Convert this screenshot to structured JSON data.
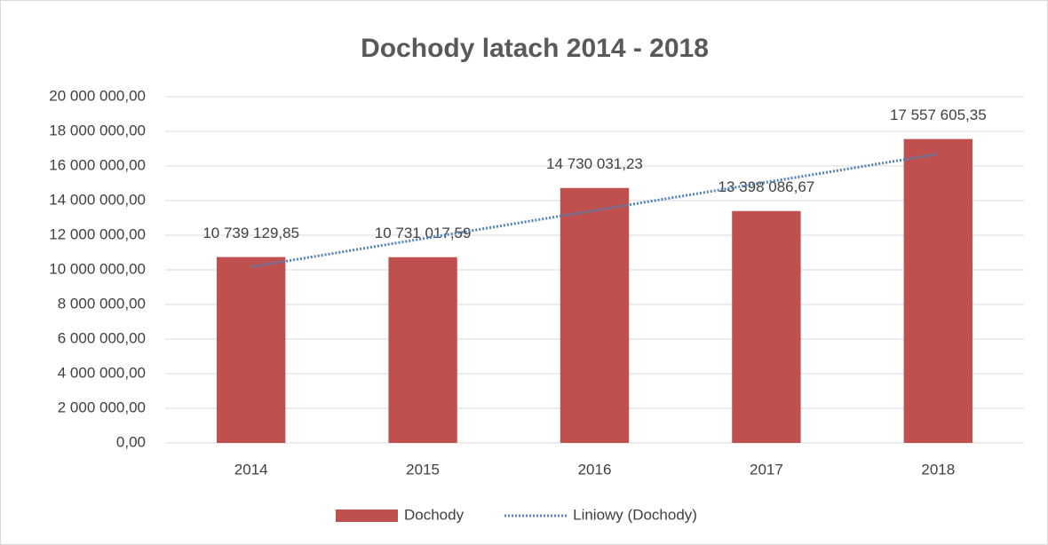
{
  "chart_data": {
    "type": "bar",
    "title": "Dochody latach 2014 - 2018",
    "categories": [
      "2014",
      "2015",
      "2016",
      "2017",
      "2018"
    ],
    "series": [
      {
        "name": "Dochody",
        "color": "#c0504d",
        "type": "bar",
        "values": [
          10739129.85,
          10731017.59,
          14730031.23,
          13398086.67,
          17557605.35
        ],
        "value_labels": [
          "10 739 129,85",
          "10 731 017,59",
          "14 730 031,23",
          "13 398 086,67",
          "17 557 605,35"
        ]
      },
      {
        "name": "Liniowy (Dochody)",
        "color": "#4f81bd",
        "type": "trendline",
        "values": [
          10170000,
          11800000,
          13430000,
          15060000,
          16690000
        ]
      }
    ],
    "ylim": [
      0,
      20000000
    ],
    "yticks": [
      {
        "value": 0,
        "label": "0,00"
      },
      {
        "value": 2000000,
        "label": "2 000 000,00"
      },
      {
        "value": 4000000,
        "label": "4 000 000,00"
      },
      {
        "value": 6000000,
        "label": "6 000 000,00"
      },
      {
        "value": 8000000,
        "label": "8 000 000,00"
      },
      {
        "value": 10000000,
        "label": "10 000 000,00"
      },
      {
        "value": 12000000,
        "label": "12 000 000,00"
      },
      {
        "value": 14000000,
        "label": "14 000 000,00"
      },
      {
        "value": 16000000,
        "label": "16 000 000,00"
      },
      {
        "value": 18000000,
        "label": "18 000 000,00"
      },
      {
        "value": 20000000,
        "label": "20 000 000,00"
      }
    ],
    "grid": true,
    "legend": "bottom"
  }
}
